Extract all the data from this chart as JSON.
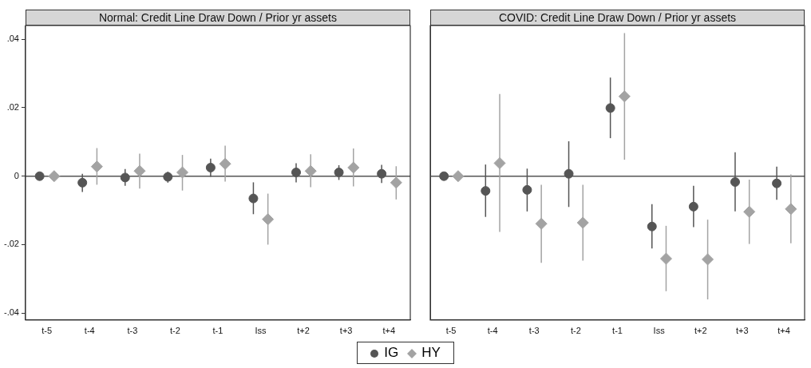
{
  "chart_data": [
    {
      "type": "scatter",
      "title": "Normal: Credit Line Draw Down / Prior yr assets",
      "categories": [
        "t-5",
        "t-4",
        "t-3",
        "t-2",
        "t-1",
        "Iss",
        "t+2",
        "t+3",
        "t+4"
      ],
      "series": [
        {
          "name": "IG",
          "color": "#555555",
          "marker": "circle",
          "values": [
            0,
            -0.0019,
            -0.0004,
            -0.0002,
            0.0025,
            -0.0065,
            0.0011,
            0.0011,
            0.0007
          ],
          "errors": [
            null,
            [
              -0.0046,
              0.0007
            ],
            [
              -0.0028,
              0.0021
            ],
            [
              -0.0019,
              0.0013
            ],
            [
              -0.0002,
              0.0051
            ],
            [
              -0.0111,
              -0.0018
            ],
            [
              -0.0018,
              0.0038
            ],
            [
              -0.0011,
              0.0032
            ],
            [
              -0.002,
              0.0033
            ]
          ]
        },
        {
          "name": "HY",
          "color": "#a3a3a3",
          "marker": "diamond",
          "values": [
            0,
            0.0028,
            0.0015,
            0.0011,
            0.0036,
            -0.0126,
            0.0015,
            0.0025,
            -0.0019
          ],
          "errors": [
            null,
            [
              -0.0025,
              0.0082
            ],
            [
              -0.0036,
              0.0066
            ],
            [
              -0.0042,
              0.0062
            ],
            [
              -0.0016,
              0.0089
            ],
            [
              -0.02,
              -0.0051
            ],
            [
              -0.0032,
              0.0064
            ],
            [
              -0.003,
              0.0081
            ],
            [
              -0.0068,
              0.0029
            ]
          ]
        }
      ],
      "ylim": [
        -0.042,
        0.044
      ],
      "yticks": [
        {
          "value": -0.04,
          "label": "-.04"
        },
        {
          "value": -0.02,
          "label": "-.02"
        },
        0,
        {
          "value": 0.02,
          "label": ".02"
        },
        {
          "value": 0.04,
          "label": ".04"
        }
      ],
      "ref_lines": [
        {
          "axis": "y",
          "value": 0,
          "color": "#555555"
        }
      ],
      "legend": "bottom"
    },
    {
      "type": "scatter",
      "title": "COVID: Credit Line Draw Down / Prior yr assets",
      "categories": [
        "t-5",
        "t-4",
        "t-3",
        "t-2",
        "t-1",
        "Iss",
        "t+2",
        "t+3",
        "t+4"
      ],
      "series": [
        {
          "color": "#555555",
          "marker": "circle",
          "values": [
            0,
            -0.0043,
            -0.004,
            0.0007,
            0.0199,
            -0.0147,
            -0.0089,
            -0.0017,
            -0.0021
          ],
          "errors": [
            null,
            [
              -0.0119,
              0.0034
            ],
            [
              -0.0103,
              0.0022
            ],
            [
              -0.009,
              0.0102
            ],
            [
              0.0111,
              0.0288
            ],
            [
              -0.0211,
              -0.0082
            ],
            [
              -0.0149,
              -0.0028
            ],
            [
              -0.0103,
              0.007
            ],
            [
              -0.0069,
              0.0028
            ]
          ]
        },
        {
          "color": "#a3a3a3",
          "marker": "diamond",
          "values": [
            0,
            0.0038,
            -0.0139,
            -0.0136,
            0.0233,
            -0.0241,
            -0.0243,
            -0.0104,
            -0.0096
          ],
          "errors": [
            null,
            [
              -0.0163,
              0.024
            ],
            [
              -0.0253,
              -0.0025
            ],
            [
              -0.0247,
              -0.0025
            ],
            [
              0.0048,
              0.0418
            ],
            [
              -0.0336,
              -0.0145
            ],
            [
              -0.036,
              -0.0127
            ],
            [
              -0.0198,
              -0.001
            ],
            [
              -0.0196,
              0.0005
            ]
          ]
        }
      ],
      "ylim": [
        -0.042,
        0.044
      ],
      "ref_lines": [
        {
          "axis": "y",
          "value": 0,
          "color": "#555555"
        }
      ],
      "tick_labels": "x"
    }
  ]
}
